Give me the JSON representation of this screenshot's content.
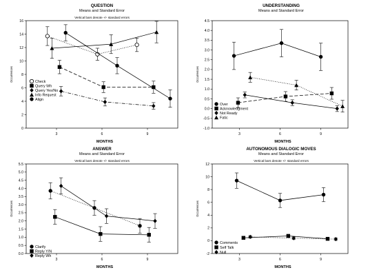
{
  "chart_data": [
    {
      "type": "line",
      "title": "QUESTION",
      "subtitle": "Means and Standard Error",
      "note": "Vertical bars denote +/- standard errors",
      "xlabel": "MONTHS",
      "ylabel": "Occurrences",
      "x_ticks": [
        3,
        6,
        9
      ],
      "xlim": [
        1,
        11
      ],
      "ylim": [
        0,
        16
      ],
      "y_ticks": [
        0,
        2,
        4,
        6,
        8,
        10,
        12,
        14,
        16
      ],
      "legend_position": "bottom-left",
      "series": [
        {
          "name": "Check",
          "marker": "open-circle",
          "line": "dotted",
          "x": [
            2.4,
            5.7,
            8.3
          ],
          "y": [
            13.7,
            11.0,
            12.4
          ],
          "err": [
            1.4,
            0.9,
            1.0
          ]
        },
        {
          "name": "Query Wh",
          "marker": "square",
          "line": "dashed",
          "x": [
            3.2,
            6.1,
            9.4
          ],
          "y": [
            9.1,
            6.1,
            6.1
          ],
          "err": [
            1.0,
            0.8,
            0.9
          ]
        },
        {
          "name": "Query Yes/No",
          "marker": "diamond",
          "line": "dash-dot",
          "x": [
            3.3,
            6.2,
            9.4
          ],
          "y": [
            5.5,
            3.9,
            3.3
          ],
          "err": [
            0.7,
            0.6,
            0.5
          ]
        },
        {
          "name": "Info Request",
          "marker": "triangle",
          "line": "solid",
          "x": [
            2.7,
            6.6,
            9.6
          ],
          "y": [
            11.9,
            12.5,
            14.3
          ],
          "err": [
            1.5,
            1.4,
            1.6
          ]
        },
        {
          "name": "Align",
          "marker": "filled-circle",
          "line": "solid",
          "x": [
            3.6,
            7.0,
            10.5
          ],
          "y": [
            14.2,
            9.3,
            4.4
          ],
          "err": [
            1.2,
            1.2,
            1.3
          ]
        }
      ]
    },
    {
      "type": "line",
      "title": "UNDERSTANDING",
      "subtitle": "Means and Standard Error",
      "note": "",
      "xlabel": "MONTHS",
      "ylabel": "Occurrences",
      "x_ticks": [
        3,
        6,
        9
      ],
      "xlim": [
        1,
        11
      ],
      "ylim": [
        -1.0,
        4.5
      ],
      "y_ticks": [
        -1.0,
        -0.5,
        0.0,
        0.5,
        1.0,
        1.5,
        2.0,
        2.5,
        3.0,
        3.5,
        4.0,
        4.5
      ],
      "legend_position": "bottom-left",
      "series": [
        {
          "name": "Over",
          "marker": "filled-circle",
          "line": "solid",
          "x": [
            2.6,
            6.1,
            9.0
          ],
          "y": [
            2.7,
            3.35,
            2.65
          ],
          "err": [
            0.7,
            0.7,
            0.7
          ]
        },
        {
          "name": "Acknowledgment",
          "marker": "square",
          "line": "dashed",
          "x": [
            2.9,
            6.4,
            9.8
          ],
          "y": [
            0.3,
            0.62,
            0.78
          ],
          "err": [
            0.25,
            0.25,
            0.3
          ]
        },
        {
          "name": "Not Ready",
          "marker": "diamond",
          "line": "solid",
          "x": [
            3.4,
            6.9,
            10.2
          ],
          "y": [
            0.7,
            0.3,
            0.0
          ],
          "err": [
            0.15,
            0.15,
            0.15
          ]
        },
        {
          "name": "Fatic",
          "marker": "triangle",
          "line": "dotted",
          "x": [
            3.8,
            7.2,
            10.6
          ],
          "y": [
            1.6,
            1.2,
            0.12
          ],
          "err": [
            0.25,
            0.25,
            0.3
          ]
        }
      ]
    },
    {
      "type": "line",
      "title": "ANSWER",
      "subtitle": "Means and Standard Error",
      "note": "Vertical bars denote +/- standard errors",
      "xlabel": "MONTHS",
      "ylabel": "Occurrences",
      "x_ticks": [
        3,
        6,
        9
      ],
      "xlim": [
        1,
        11
      ],
      "ylim": [
        0,
        5.5
      ],
      "y_ticks": [
        0,
        0.5,
        1.0,
        1.5,
        2.0,
        2.5,
        3.0,
        3.5,
        4.0,
        4.5,
        5.0,
        5.5
      ],
      "legend_position": "bottom-left",
      "series": [
        {
          "name": "Clarify",
          "marker": "filled-circle",
          "line": "dotted",
          "x": [
            2.6,
            5.5,
            8.5
          ],
          "y": [
            3.85,
            2.8,
            1.7
          ],
          "err": [
            0.5,
            0.45,
            0.45
          ]
        },
        {
          "name": "Reply Y/N",
          "marker": "square",
          "line": "solid",
          "x": [
            2.9,
            5.9,
            9.1
          ],
          "y": [
            2.25,
            1.2,
            1.15
          ],
          "err": [
            0.45,
            0.45,
            0.45
          ]
        },
        {
          "name": "Reply Wh",
          "marker": "diamond",
          "line": "solid",
          "x": [
            3.3,
            6.3,
            9.5
          ],
          "y": [
            4.15,
            2.3,
            2.0
          ],
          "err": [
            0.5,
            0.45,
            0.45
          ]
        }
      ]
    },
    {
      "type": "line",
      "title": "AUTONOMOUS DIALOGIC MOVES",
      "subtitle": "Means and Standard Error",
      "note": "Vertical bars denote +/- standard errors",
      "xlabel": "MONTHS",
      "ylabel": "Occurrences",
      "x_ticks": [
        3,
        6,
        9
      ],
      "xlim": [
        1,
        11
      ],
      "ylim": [
        -2,
        12
      ],
      "y_ticks": [
        -2,
        0,
        2,
        4,
        6,
        8,
        10,
        12
      ],
      "legend_position": "bottom-left",
      "series": [
        {
          "name": "Comments",
          "marker": "filled-circle",
          "line": "solid",
          "x": [
            2.8,
            6.0,
            9.2
          ],
          "y": [
            9.4,
            6.3,
            7.2
          ],
          "err": [
            1.2,
            1.1,
            1.1
          ]
        },
        {
          "name": "Self Talk",
          "marker": "square",
          "line": "solid",
          "x": [
            3.3,
            6.6,
            9.5
          ],
          "y": [
            0.45,
            0.75,
            0.3
          ],
          "err": [
            0.25,
            0.25,
            0.25
          ]
        },
        {
          "name": "Null",
          "marker": "diamond",
          "line": "dotted",
          "x": [
            3.8,
            7.0,
            10.1
          ],
          "y": [
            0.6,
            0.4,
            0.25
          ],
          "err": [
            0.2,
            0.2,
            0.2
          ]
        }
      ]
    }
  ]
}
